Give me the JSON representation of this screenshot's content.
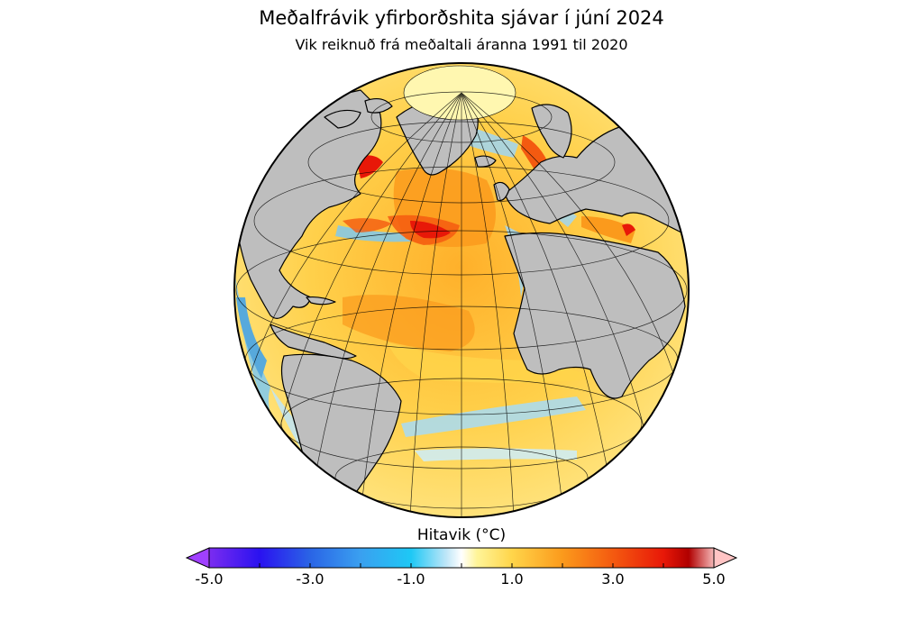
{
  "title": "Meðalfrávik yfirborðshita sjávar í júní 2024",
  "subtitle": "Vik reiknuð frá meðaltali áranna 1991 til 2020",
  "colorbar": {
    "label": "Hitavik (°C)",
    "min": -5.0,
    "max": 5.0,
    "ticks": [
      "-5.0",
      "-3.0",
      "-1.0",
      "1.0",
      "3.0",
      "5.0"
    ],
    "tick_values": [
      -5,
      -3,
      -1,
      1,
      3,
      5
    ],
    "stops": [
      {
        "value": -5,
        "color": "#7b2cf0"
      },
      {
        "value": -4,
        "color": "#2a12f0"
      },
      {
        "value": -3,
        "color": "#2a64e6"
      },
      {
        "value": -2,
        "color": "#3aa0f0"
      },
      {
        "value": -1,
        "color": "#1ec8f5"
      },
      {
        "value": -0.3,
        "color": "#bfe6f8"
      },
      {
        "value": 0,
        "color": "#ffffff"
      },
      {
        "value": 0.3,
        "color": "#fff59a"
      },
      {
        "value": 1,
        "color": "#ffd54a"
      },
      {
        "value": 2,
        "color": "#fb9a1c"
      },
      {
        "value": 3,
        "color": "#f45a10"
      },
      {
        "value": 4,
        "color": "#e81808"
      },
      {
        "value": 4.5,
        "color": "#b00000"
      },
      {
        "value": 5,
        "color": "#f5b8b8"
      }
    ],
    "under_color": "#a040ff",
    "over_color": "#ffc4c4"
  },
  "map": {
    "projection": "orthographic",
    "land_color": "#bebebe",
    "ocean_base_color": "#f9c23a"
  }
}
